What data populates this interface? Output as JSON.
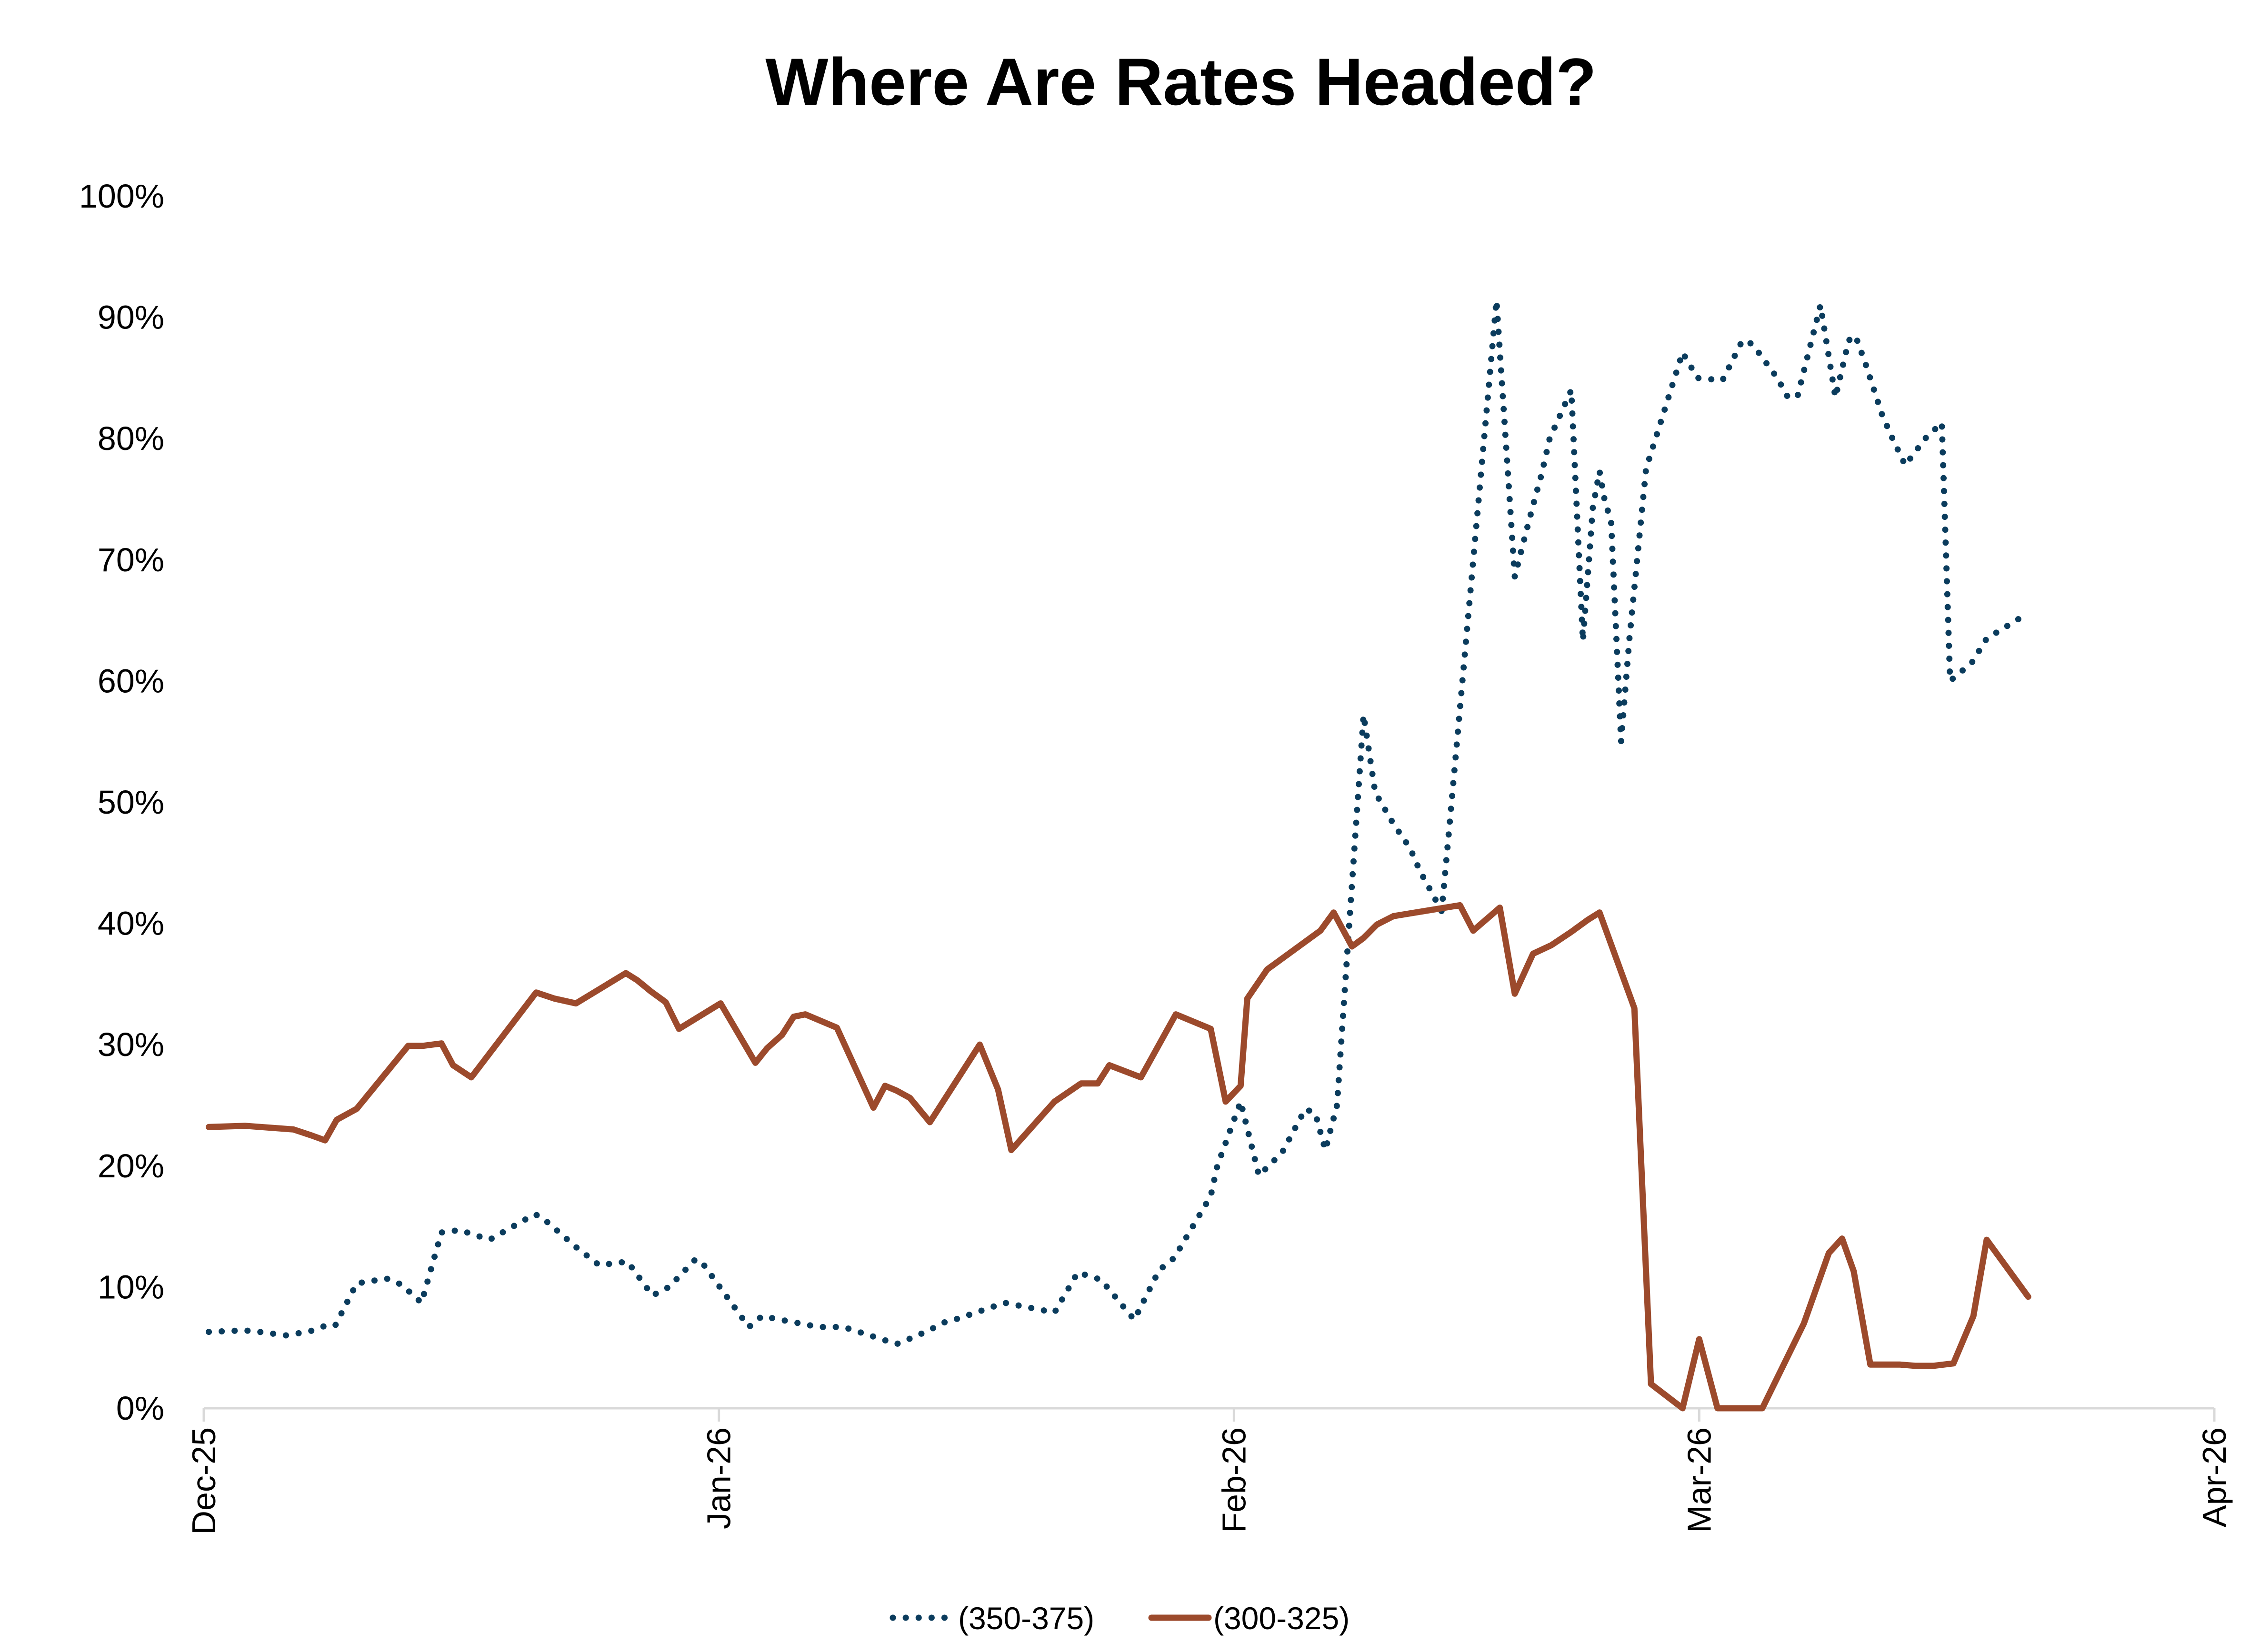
{
  "chart_data": {
    "type": "line",
    "title": "Where Are Rates Headed?",
    "xlabel": "",
    "ylabel": "",
    "ylim": [
      0,
      100
    ],
    "y_ticks": [
      "0%",
      "10%",
      "20%",
      "30%",
      "40%",
      "50%",
      "60%",
      "70%",
      "80%",
      "90%",
      "100%"
    ],
    "x_range_days": [
      0,
      121
    ],
    "x_ticks": [
      {
        "label": "Dec-25",
        "day": 0
      },
      {
        "label": "Jan-26",
        "day": 31
      },
      {
        "label": "Feb-26",
        "day": 62
      },
      {
        "label": "Mar-26",
        "day": 90
      },
      {
        "label": "Apr-26",
        "day": 121
      }
    ],
    "grid": false,
    "legend_position": "bottom-center",
    "series": [
      {
        "name": "(350-375)",
        "style": "dotted",
        "color": "#0b3c5d",
        "x": [
          0.3,
          2.0,
          2.8,
          5.0,
          6.5,
          7.3,
          7.9,
          9.2,
          11.0,
          11.9,
          13.1,
          14.3,
          15.4,
          17.2,
          18.1,
          19.9,
          20.3,
          21.9,
          22.4,
          23.8,
          25.5,
          27.0,
          28.0,
          29.6,
          30.0,
          32.8,
          33.6,
          34.7,
          35.5,
          37.0,
          38.5,
          41.7,
          42.6,
          43.6,
          44.6,
          45.4,
          48.2,
          51.2,
          52.6,
          54.0,
          56.0,
          57.5,
          58.4,
          60.6,
          61.0,
          62.4,
          63.5,
          64.9,
          66.3,
          66.9,
          67.5,
          68.2,
          69.0,
          69.8,
          70.5,
          71.6,
          72.6,
          73.2,
          73.8,
          74.5,
          75.0,
          77.8,
          78.9,
          79.3,
          80.0,
          80.5,
          81.0,
          82.3,
          83.0,
          83.6,
          84.0,
          84.3,
          84.7,
          85.3,
          85.8,
          86.8,
          89.0,
          89.9,
          91.4,
          92.6,
          93.2,
          94.7,
          95.3,
          95.9,
          97.3,
          98.2,
          99.0,
          99.4,
          100.0,
          101.0,
          101.6,
          102.4,
          103.6,
          104.6,
          105.1,
          106.4,
          107.3,
          109.8
        ],
        "values": [
          6.3,
          6.4,
          6.4,
          6.0,
          6.4,
          6.8,
          6.8,
          10.3,
          10.7,
          10.2,
          8.7,
          14.5,
          14.7,
          13.9,
          14.6,
          16.0,
          15.8,
          13.9,
          13.3,
          11.8,
          12.1,
          9.3,
          10.0,
          12.3,
          12.0,
          6.7,
          7.6,
          7.3,
          7.1,
          6.7,
          6.7,
          5.3,
          5.8,
          6.4,
          7.1,
          7.4,
          8.7,
          7.9,
          11.2,
          10.6,
          7.3,
          11.4,
          12.4,
          17.5,
          20.0,
          25.3,
          19.2,
          21.1,
          24.7,
          24.3,
          21.3,
          25.0,
          41.2,
          57.2,
          50.8,
          48.2,
          46.2,
          44.3,
          42.8,
          41.0,
          48.5,
          91.4,
          68.6,
          70.8,
          74.5,
          77.0,
          80.0,
          84.0,
          63.3,
          74.3,
          77.3,
          75.0,
          73.1,
          55.0,
          63.5,
          77.5,
          87.1,
          85.0,
          84.8,
          88.1,
          87.8,
          85.0,
          83.5,
          83.4,
          91.0,
          83.4,
          88.1,
          88.5,
          86.2,
          82.0,
          80.1,
          77.8,
          80.0,
          81.3,
          60.0,
          61.5,
          63.5,
          65.6
        ]
      },
      {
        "name": "(300-325)",
        "style": "solid",
        "color": "#9c4a2c",
        "x": [
          0.3,
          2.5,
          5.4,
          6.5,
          7.3,
          8.0,
          9.2,
          12.3,
          13.2,
          14.3,
          15.0,
          16.1,
          20.0,
          21.1,
          22.4,
          25.4,
          26.1,
          26.9,
          27.8,
          28.6,
          31.1,
          33.2,
          33.9,
          34.8,
          35.5,
          36.2,
          38.1,
          40.3,
          41.0,
          41.7,
          42.5,
          43.7,
          46.7,
          47.8,
          48.6,
          51.2,
          52.8,
          53.8,
          54.5,
          56.4,
          58.5,
          60.6,
          61.5,
          62.4,
          62.8,
          64.0,
          67.2,
          68.0,
          69.1,
          69.8,
          70.6,
          71.6,
          75.6,
          76.4,
          78.0,
          78.9,
          80.0,
          81.1,
          82.3,
          83.3,
          84.0,
          86.1,
          87.1,
          89.0,
          90.0,
          91.1,
          91.9,
          92.7,
          93.8,
          96.3,
          97.8,
          98.6,
          99.3,
          100.3,
          102.1,
          103.0,
          104.1,
          105.3,
          106.5,
          107.3,
          109.8
        ],
        "values": [
          23.2,
          23.3,
          23.0,
          22.5,
          22.1,
          23.8,
          24.7,
          29.9,
          29.9,
          30.1,
          28.3,
          27.3,
          34.3,
          33.8,
          33.4,
          35.9,
          35.3,
          34.4,
          33.5,
          31.3,
          33.4,
          28.5,
          29.7,
          30.8,
          32.3,
          32.5,
          31.4,
          24.8,
          26.6,
          26.2,
          25.6,
          23.6,
          30.0,
          26.3,
          21.3,
          25.3,
          26.8,
          26.8,
          28.3,
          27.3,
          32.5,
          31.3,
          25.3,
          26.6,
          33.8,
          36.2,
          39.4,
          40.9,
          38.1,
          38.8,
          39.9,
          40.6,
          41.5,
          39.4,
          41.3,
          34.2,
          37.5,
          38.2,
          39.3,
          40.3,
          40.9,
          33.0,
          2.0,
          0.0,
          5.7,
          0.0,
          0.0,
          0.0,
          0.0,
          7.0,
          12.8,
          14.0,
          11.3,
          3.6,
          3.6,
          3.5,
          3.5,
          3.7,
          7.6,
          13.9,
          9.2
        ]
      }
    ]
  }
}
